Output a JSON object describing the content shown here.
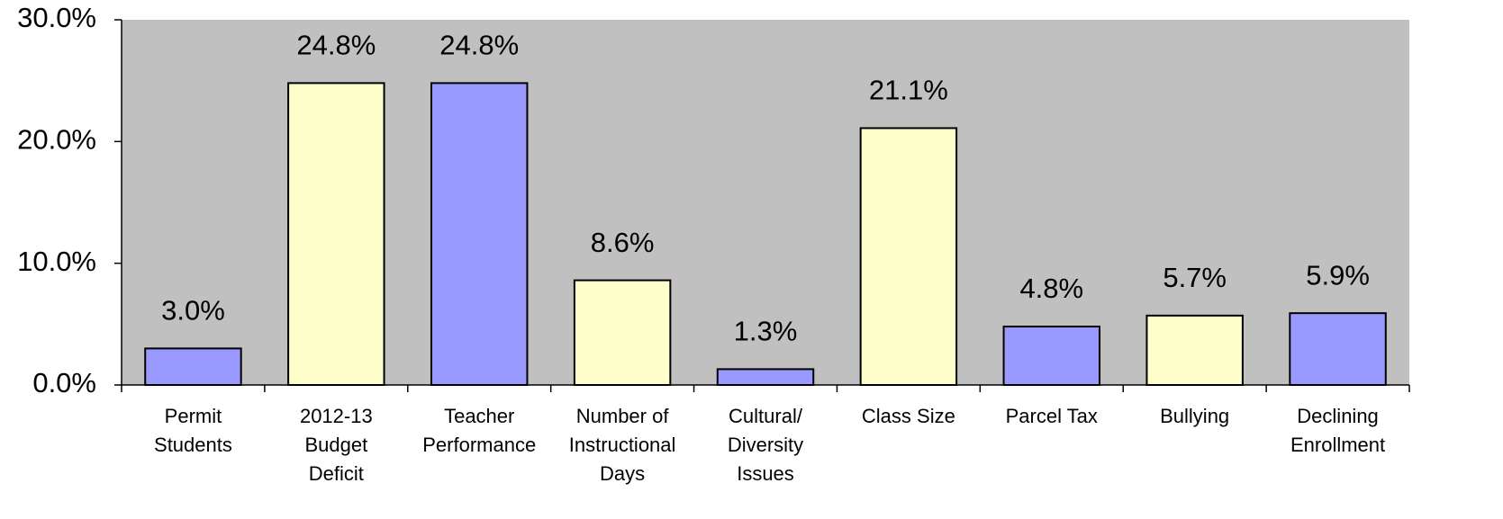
{
  "chart_data": {
    "type": "bar",
    "categories": [
      "Permit\nStudents",
      "2012-13\nBudget\nDeficit",
      "Teacher\nPerformance",
      "Number of\nInstructional\nDays",
      "Cultural/\nDiversity\nIssues",
      "Class Size",
      "Parcel Tax",
      "Bullying",
      "Declining\nEnrollment"
    ],
    "values": [
      3.0,
      24.8,
      24.8,
      8.6,
      1.3,
      21.1,
      4.8,
      5.7,
      5.9
    ],
    "value_labels": [
      "3.0%",
      "24.8%",
      "24.8%",
      "8.6%",
      "1.3%",
      "21.1%",
      "4.8%",
      "5.7%",
      "5.9%"
    ],
    "colors": [
      "#9999ff",
      "#ffffcc",
      "#9999ff",
      "#ffffcc",
      "#9999ff",
      "#ffffcc",
      "#9999ff",
      "#ffffcc",
      "#9999ff"
    ],
    "ylim": [
      0,
      30
    ],
    "yticks": [
      {
        "value": 0,
        "label": "0.0%"
      },
      {
        "value": 10,
        "label": "10.0%"
      },
      {
        "value": 20,
        "label": "20.0%"
      },
      {
        "value": 30,
        "label": "30.0%"
      }
    ]
  }
}
